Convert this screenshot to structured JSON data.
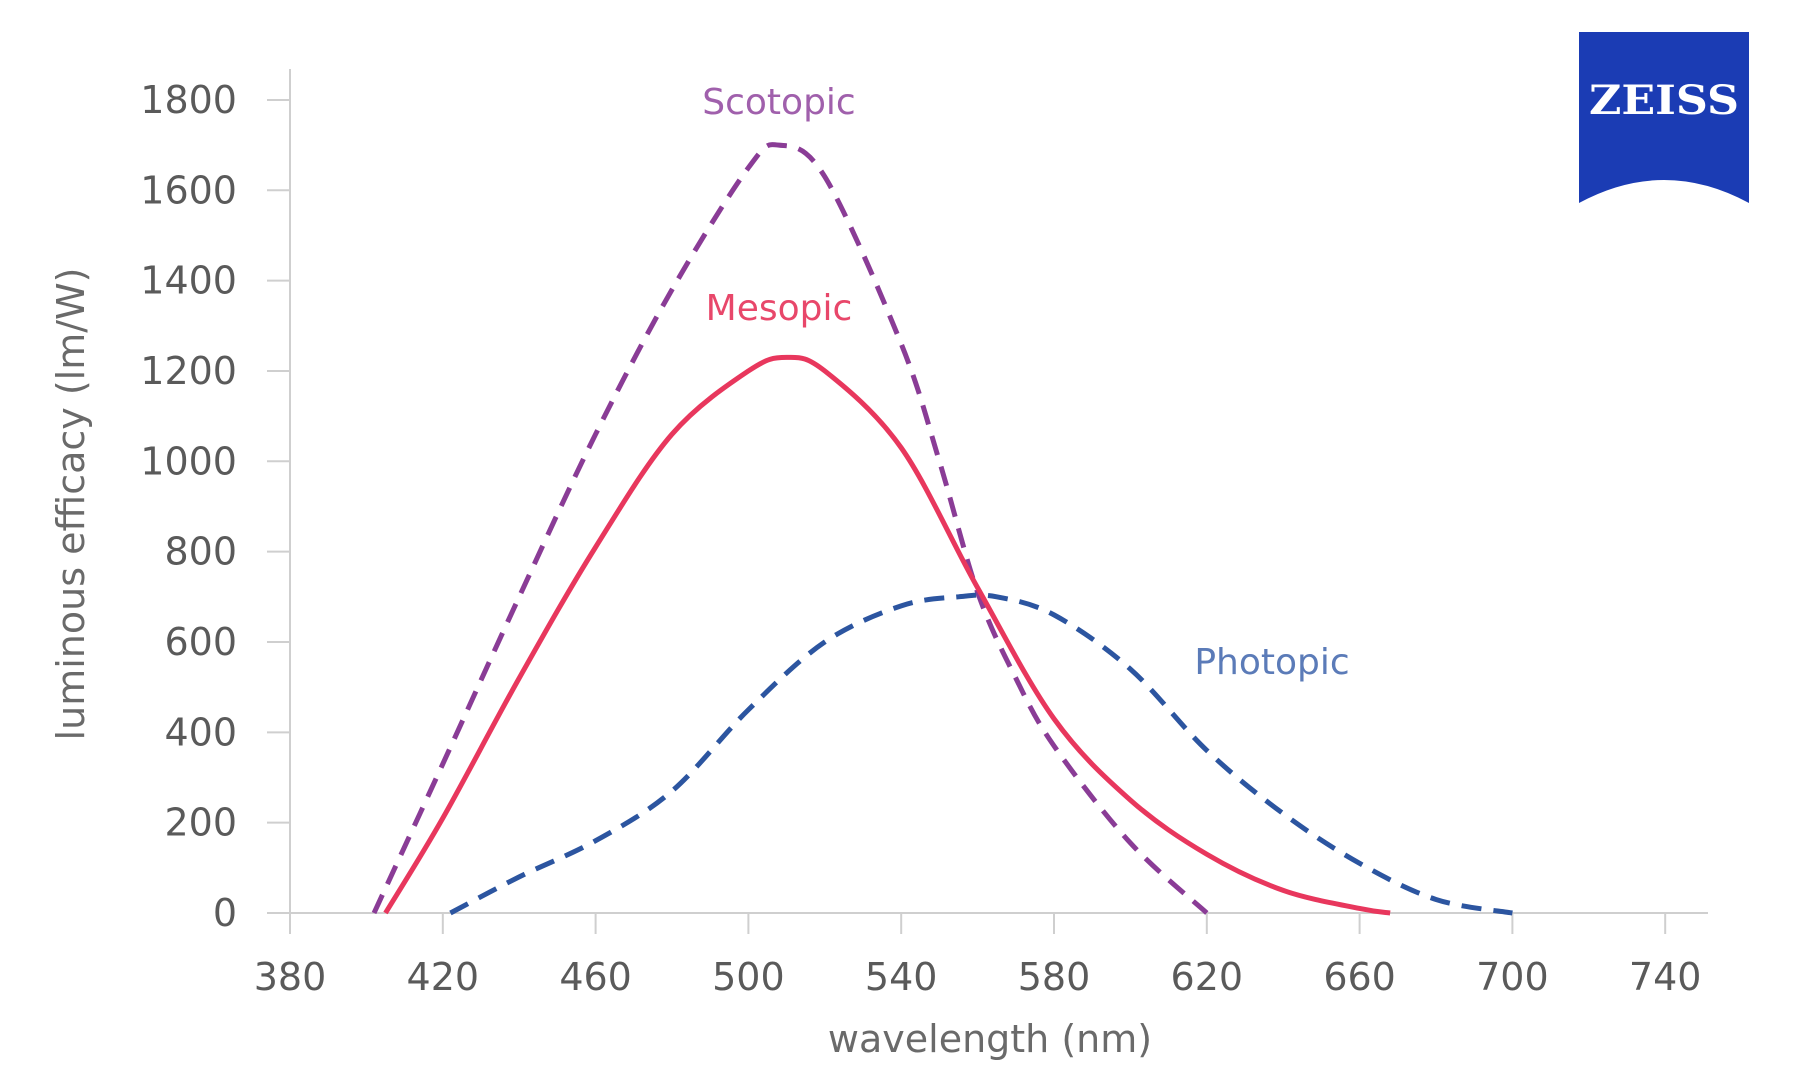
{
  "chart_data": {
    "type": "line",
    "title": "",
    "xlabel": "wavelength (nm)",
    "ylabel": "luminous efficacy (lm/W)",
    "xlim": [
      380,
      750
    ],
    "ylim": [
      0,
      1800
    ],
    "xticks": [
      380,
      420,
      460,
      500,
      540,
      580,
      620,
      660,
      700,
      740
    ],
    "yticks": [
      0,
      200,
      400,
      600,
      800,
      1000,
      1200,
      1400,
      1600,
      1800
    ],
    "grid": false,
    "series": [
      {
        "name": "Scotopic",
        "style": "dashed",
        "color": "#8a3c96",
        "label_color": "#a060ac",
        "x": [
          402,
          420,
          440,
          460,
          480,
          500,
          508,
          520,
          540,
          550,
          560,
          570,
          580,
          600,
          620
        ],
        "y": [
          0,
          330,
          700,
          1060,
          1380,
          1650,
          1700,
          1630,
          1260,
          1000,
          710,
          520,
          370,
          155,
          0
        ]
      },
      {
        "name": "Mesopic",
        "style": "solid",
        "color": "#e8375d",
        "label_color": "#e8476a",
        "x": [
          405,
          420,
          440,
          460,
          480,
          500,
          510,
          520,
          540,
          560,
          580,
          600,
          620,
          640,
          660,
          668
        ],
        "y": [
          0,
          210,
          520,
          810,
          1060,
          1200,
          1230,
          1200,
          1030,
          720,
          430,
          250,
          130,
          50,
          10,
          0
        ]
      },
      {
        "name": "Photopic",
        "style": "dashed",
        "color": "#2c55a0",
        "label_color": "#5b7bb8",
        "x": [
          422,
          440,
          460,
          480,
          500,
          520,
          540,
          555,
          565,
          580,
          600,
          620,
          640,
          660,
          680,
          700
        ],
        "y": [
          0,
          80,
          160,
          270,
          450,
          600,
          680,
          700,
          700,
          660,
          540,
          360,
          220,
          110,
          30,
          0
        ]
      }
    ]
  },
  "logo": {
    "text": "ZEISS",
    "color": "#1b3cb4"
  }
}
